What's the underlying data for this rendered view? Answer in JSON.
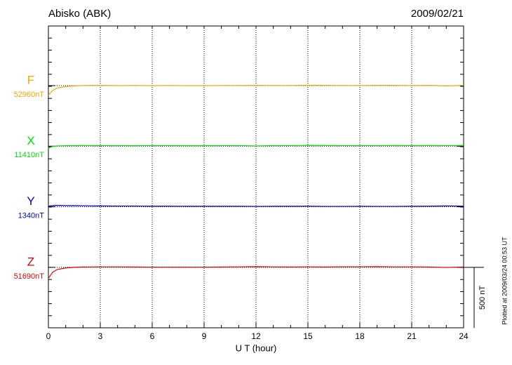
{
  "chart_data": {
    "type": "magnetogram",
    "title": "Abisko (ABK)",
    "date": "2009/02/21",
    "xlabel": "U T (hour)",
    "note": "Plotted at 2009/03/24 00:53 UT",
    "scale_bar": {
      "value": 500,
      "label": "500 nT"
    },
    "xlim": [
      0,
      24
    ],
    "xticks": [
      0,
      3,
      6,
      9,
      12,
      15,
      18,
      21,
      24
    ],
    "grid": true,
    "x": [
      0,
      0.25,
      0.5,
      1,
      1.5,
      2,
      3,
      4,
      5,
      6,
      7,
      8,
      9,
      10,
      11,
      12,
      13,
      14,
      15,
      16,
      17,
      18,
      19,
      20,
      21,
      22,
      23,
      24
    ],
    "series": [
      {
        "name": "F",
        "color": "#f0a800",
        "baseline": {
          "value": 52960,
          "label": "52960nT"
        },
        "values": [
          52880,
          52920,
          52940,
          52952,
          52958,
          52961,
          52962,
          52960,
          52961,
          52960,
          52961,
          52960,
          52960,
          52961,
          52961,
          52962,
          52961,
          52961,
          52963,
          52962,
          52961,
          52961,
          52962,
          52962,
          52961,
          52962,
          52958,
          52962
        ]
      },
      {
        "name": "X",
        "color": "#00dd00",
        "baseline": {
          "value": 11410,
          "label": "11410nT"
        },
        "values": [
          11395,
          11408,
          11412,
          11414,
          11415,
          11416,
          11415,
          11415,
          11414,
          11415,
          11415,
          11414,
          11414,
          11415,
          11415,
          11412,
          11415,
          11415,
          11417,
          11416,
          11415,
          11415,
          11415,
          11416,
          11415,
          11416,
          11415,
          11416
        ]
      },
      {
        "name": "Y",
        "color": "#0000cc",
        "baseline": {
          "value": 1340,
          "label": "1340nT"
        },
        "values": [
          1345,
          1350,
          1352,
          1350,
          1350,
          1349,
          1347,
          1346,
          1346,
          1345,
          1345,
          1344,
          1344,
          1344,
          1344,
          1343,
          1344,
          1344,
          1345,
          1343,
          1343,
          1344,
          1343,
          1343,
          1344,
          1345,
          1347,
          1345
        ]
      },
      {
        "name": "Z",
        "color": "#dd0000",
        "baseline": {
          "value": 51690,
          "label": "51690nT"
        },
        "values": [
          51600,
          51650,
          51672,
          51685,
          51690,
          51693,
          51694,
          51694,
          51693,
          51692,
          51692,
          51692,
          51692,
          51693,
          51694,
          51696,
          51694,
          51693,
          51694,
          51693,
          51695,
          51695,
          51696,
          51694,
          51694,
          51693,
          51689,
          51693
        ]
      }
    ]
  }
}
